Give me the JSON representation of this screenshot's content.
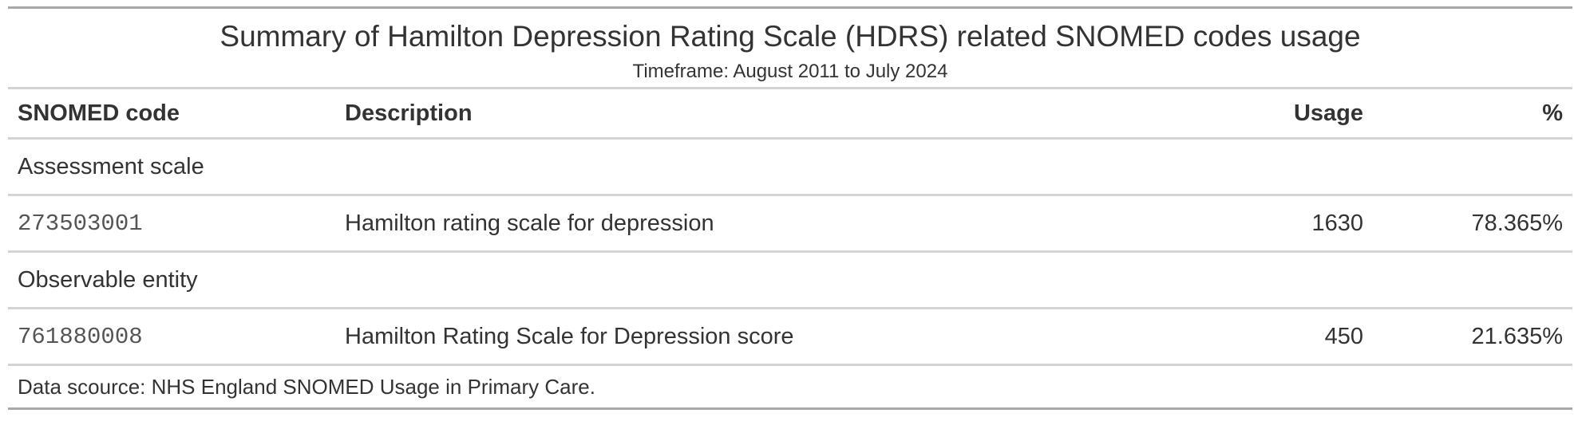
{
  "table": {
    "title": "Summary of Hamilton Depression Rating Scale (HDRS) related SNOMED codes usage",
    "subtitle": "Timeframe: August 2011 to July 2024",
    "columns": {
      "code": "SNOMED code",
      "description": "Description",
      "usage": "Usage",
      "percent": "%"
    },
    "groups": [
      {
        "label": "Assessment scale",
        "rows": [
          {
            "code": "273503001",
            "description": "Hamilton rating scale for depression",
            "usage": "1630",
            "percent": "78.365%"
          }
        ]
      },
      {
        "label": "Observable entity",
        "rows": [
          {
            "code": "761880008",
            "description": "Hamilton Rating Scale for Depression score",
            "usage": "450",
            "percent": "21.635%"
          }
        ]
      }
    ],
    "source_note": "Data scource: NHS England SNOMED Usage in Primary Care."
  }
}
